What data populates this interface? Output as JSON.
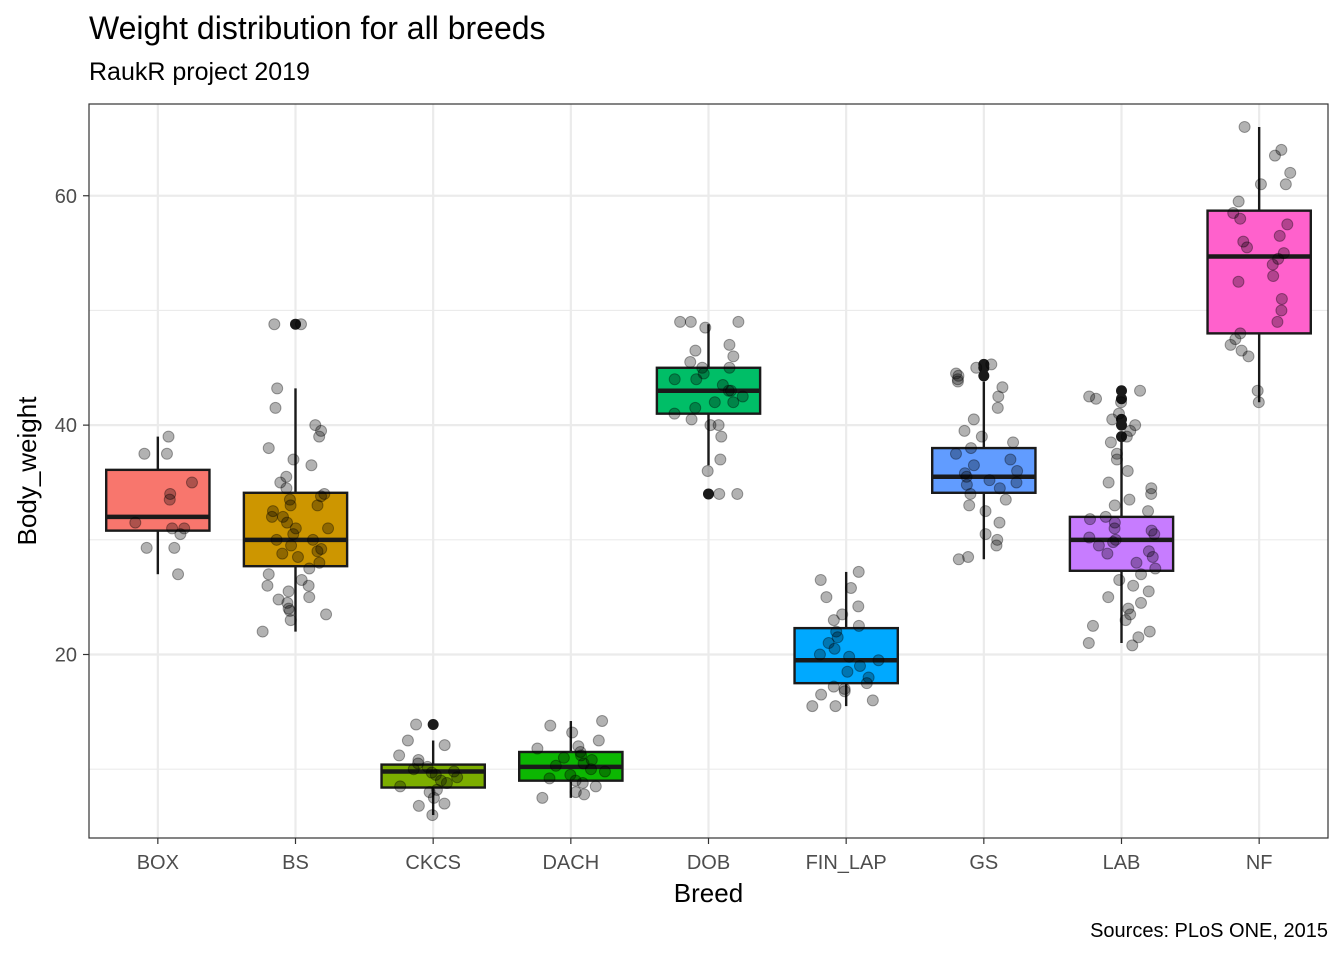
{
  "chart_data": {
    "type": "boxplot",
    "title": "Weight distribution for all breeds",
    "subtitle": "RaukR project 2019",
    "caption": "Sources: PLoS ONE, 2015",
    "xlabel": "Breed",
    "ylabel": "Body_weight",
    "ylim": [
      4,
      68
    ],
    "yticks": [
      20,
      40,
      60
    ],
    "grid": true,
    "categories": [
      "BOX",
      "BS",
      "CKCS",
      "DACH",
      "DOB",
      "FIN_LAP",
      "GS",
      "LAB",
      "NF"
    ],
    "boxes": [
      {
        "breed": "BOX",
        "color": "#F8766D",
        "whisker_low": 27,
        "q1": 30.8,
        "median": 32,
        "q3": 36.1,
        "whisker_high": 39,
        "outliers": [],
        "points": [
          39,
          37.5,
          37.5,
          35,
          34,
          33.5,
          31.5,
          31,
          31,
          30.5,
          29.3,
          29.3,
          27
        ]
      },
      {
        "breed": "BS",
        "color": "#CD9600",
        "whisker_low": 22,
        "q1": 27.7,
        "median": 30,
        "q3": 34.1,
        "whisker_high": 43.2,
        "outliers": [
          48.8
        ],
        "points": [
          48.8,
          48.8,
          43.2,
          41.5,
          40,
          39.5,
          39,
          38,
          37,
          36.5,
          35.5,
          35,
          34.5,
          34,
          33.8,
          33.5,
          33,
          33,
          32.5,
          32,
          32,
          31.5,
          31,
          31,
          30.5,
          30,
          30,
          29.5,
          29.2,
          29,
          28.8,
          28.5,
          28,
          27.5,
          27,
          26.5,
          26,
          26,
          25.5,
          25,
          24.8,
          24.5,
          24,
          23.8,
          23.5,
          23,
          22
        ]
      },
      {
        "breed": "CKCS",
        "color": "#7CAE00",
        "whisker_low": 6,
        "q1": 8.4,
        "median": 9.8,
        "q3": 10.4,
        "whisker_high": 12.5,
        "outliers": [
          13.9
        ],
        "points": [
          13.9,
          12.5,
          12.1,
          11.2,
          10.8,
          10.5,
          10.2,
          10,
          9.8,
          9.7,
          9.5,
          9.3,
          9,
          8.8,
          8.5,
          8.2,
          8,
          7.5,
          7,
          6.8,
          6
        ]
      },
      {
        "breed": "DACH",
        "color": "#0CB702",
        "whisker_low": 7.5,
        "q1": 9,
        "median": 10.2,
        "q3": 11.5,
        "whisker_high": 14.2,
        "outliers": [],
        "points": [
          14.2,
          13.8,
          13.2,
          12.5,
          12,
          11.8,
          11.5,
          11.2,
          11,
          10.8,
          10.5,
          10.3,
          10,
          9.8,
          9.5,
          9.2,
          9,
          8.8,
          8.5,
          8,
          7.8,
          7.5
        ]
      },
      {
        "breed": "DOB",
        "color": "#00BE67",
        "whisker_low": 36.5,
        "q1": 41,
        "median": 43,
        "q3": 45,
        "whisker_high": 48.8,
        "outliers": [
          34
        ],
        "points": [
          49,
          49,
          49,
          48.5,
          47,
          46.5,
          46,
          45.5,
          45,
          45,
          44.5,
          44,
          44,
          43.5,
          43,
          43,
          42.5,
          42,
          42,
          41.5,
          41,
          40.5,
          40,
          40,
          39,
          37,
          36,
          34,
          34
        ]
      },
      {
        "breed": "FIN_LAP",
        "color": "#00A9FF",
        "whisker_low": 15.5,
        "q1": 17.5,
        "median": 19.5,
        "q3": 22.3,
        "whisker_high": 27.2,
        "outliers": [],
        "points": [
          27.2,
          26.5,
          25.8,
          25,
          24.2,
          23.5,
          23,
          22.5,
          22,
          21.5,
          21,
          20.5,
          20,
          19.8,
          19.5,
          19,
          18.5,
          18,
          17.5,
          17.2,
          17,
          16.8,
          16.5,
          16,
          15.5,
          15.5
        ]
      },
      {
        "breed": "GS",
        "color": "#619CFF",
        "whisker_low": 28.3,
        "q1": 34.1,
        "median": 35.5,
        "q3": 38,
        "whisker_high": 43.8,
        "outliers": [
          44.3,
          45,
          45.3
        ],
        "points": [
          45.3,
          45,
          44.5,
          44.3,
          44,
          43.8,
          43.3,
          42.5,
          41.5,
          40.5,
          39.5,
          39,
          38.5,
          38,
          37.5,
          37,
          36.5,
          36,
          35.8,
          35.5,
          35.2,
          35,
          34.8,
          34.5,
          34,
          33.5,
          33,
          32.5,
          31.5,
          30.5,
          30,
          29.5,
          28.5,
          28.3
        ]
      },
      {
        "breed": "LAB",
        "color": "#C77CFF",
        "whisker_low": 21,
        "q1": 27.3,
        "median": 30,
        "q3": 32,
        "whisker_high": 38.7,
        "outliers": [
          39,
          40,
          40.5,
          42.3,
          43
        ],
        "points": [
          43,
          42.5,
          42.3,
          42,
          41,
          40.5,
          40,
          39.5,
          39,
          38.5,
          37.5,
          37,
          36,
          35,
          34.5,
          34,
          33.5,
          33,
          32.5,
          32,
          31.8,
          31.5,
          31,
          30.8,
          30.5,
          30.2,
          30,
          29.8,
          29.5,
          29,
          28.8,
          28.5,
          28,
          27.5,
          27,
          26.5,
          26,
          25.5,
          25,
          24.5,
          24,
          23.5,
          23,
          22.5,
          22,
          21.5,
          21,
          20.8
        ]
      },
      {
        "breed": "NF",
        "color": "#FF61CC",
        "whisker_low": 42,
        "q1": 48,
        "median": 54.7,
        "q3": 58.7,
        "whisker_high": 66,
        "outliers": [],
        "points": [
          66,
          64,
          63.5,
          62,
          61,
          61,
          59.5,
          58.5,
          58,
          57.5,
          56.5,
          56,
          55.5,
          55,
          54.5,
          54,
          53,
          52.5,
          51,
          50,
          49,
          48,
          47.5,
          47,
          46.5,
          46,
          43,
          42
        ]
      }
    ]
  }
}
